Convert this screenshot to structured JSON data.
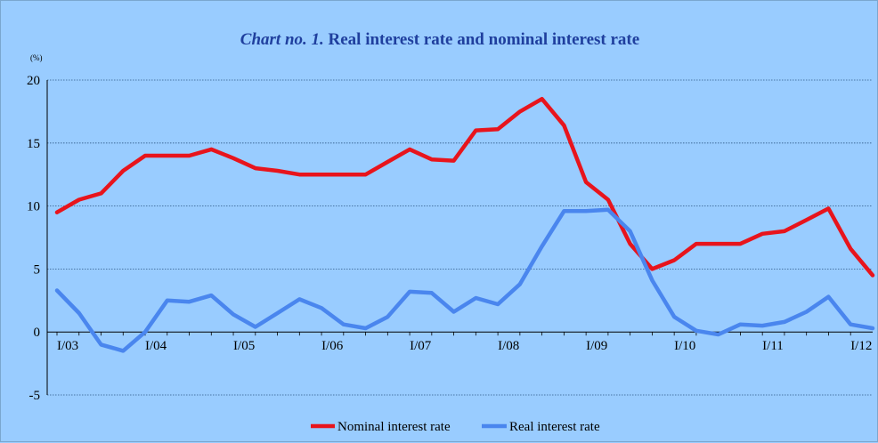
{
  "chart_data": {
    "type": "line",
    "title_prefix": "Chart no. 1.",
    "title_main": " Real interest rate and nominal interest rate",
    "ylabel": "(%)",
    "ylim": [
      -5,
      20
    ],
    "yticks": [
      20,
      15,
      10,
      5,
      0,
      -5
    ],
    "xlim": [
      0,
      36.8
    ],
    "xticks": [
      {
        "label": "I/03",
        "x": 0
      },
      {
        "label": "I/04",
        "x": 4
      },
      {
        "label": "I/05",
        "x": 8
      },
      {
        "label": "I/06",
        "x": 12
      },
      {
        "label": "I/07",
        "x": 16
      },
      {
        "label": "I/08",
        "x": 20
      },
      {
        "label": "I/09",
        "x": 24
      },
      {
        "label": "I/10",
        "x": 28
      },
      {
        "label": "I/11",
        "x": 32
      },
      {
        "label": "I/12",
        "x": 36
      }
    ],
    "grid": true,
    "legend_position": "bottom-center",
    "series": [
      {
        "name": "Nominal interest rate",
        "color": "#E8141C",
        "values": [
          9.5,
          10.5,
          11,
          12.8,
          14,
          14,
          14,
          14.5,
          13.8,
          13,
          12.8,
          12.5,
          12.5,
          12.5,
          12.5,
          13.5,
          14.5,
          13.7,
          13.6,
          16,
          16.1,
          17.5,
          18.5,
          16.4,
          11.9,
          10.5,
          7,
          5,
          5.7,
          7,
          7,
          7,
          7.8,
          8,
          8.9,
          9.8,
          6.6,
          4.5
        ]
      },
      {
        "name": "Real interest rate",
        "color": "#4A86EE",
        "values": [
          3.3,
          1.5,
          -1,
          -1.5,
          0,
          2.5,
          2.4,
          2.9,
          1.4,
          0.4,
          1.5,
          2.6,
          1.9,
          0.6,
          0.3,
          1.2,
          3.2,
          3.1,
          1.6,
          2.7,
          2.2,
          3.8,
          6.8,
          9.6,
          9.6,
          9.7,
          8,
          4.1,
          1.2,
          0.1,
          -0.2,
          0.6,
          0.5,
          0.8,
          1.6,
          2.8,
          0.6,
          0.3
        ]
      }
    ]
  }
}
